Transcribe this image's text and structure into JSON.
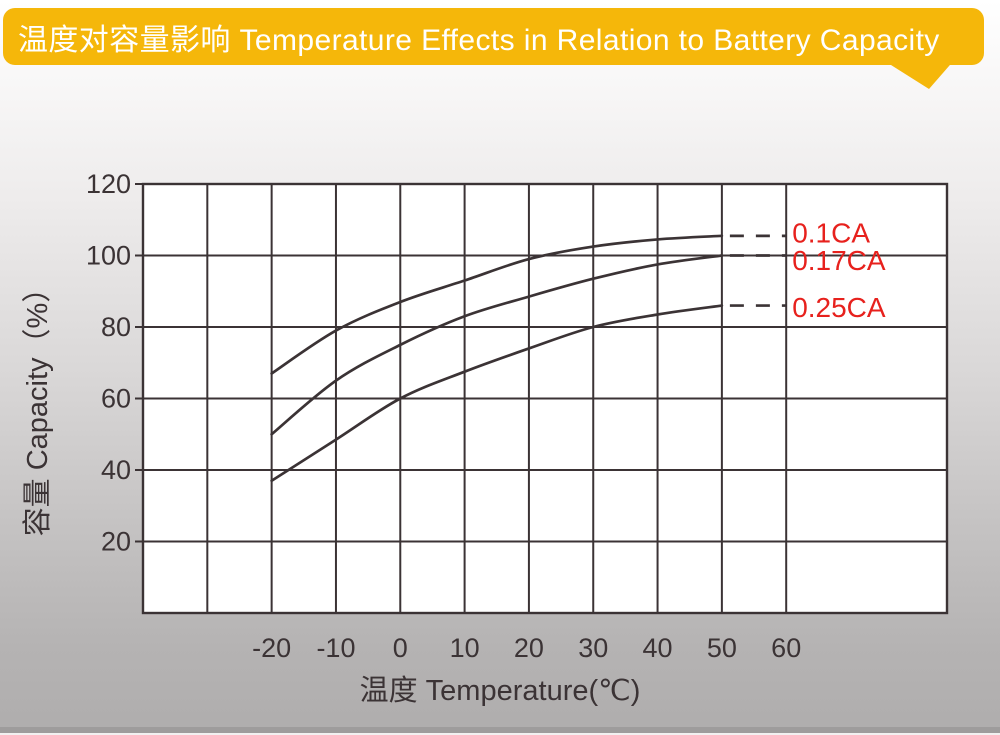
{
  "banner": {
    "title": "温度对容量影响 Temperature Effects in Relation to Battery Capacity"
  },
  "colors": {
    "banner_bg": "#F5B70A",
    "banner_text": "#FFFFFF",
    "ink": "#3B3335",
    "series_label": "#E7211D",
    "plot_bg": "#FFFFFF"
  },
  "chart_data": {
    "type": "line",
    "title": "温度对容量影响 Temperature Effects in Relation to Battery Capacity",
    "xlabel": "温度 Temperature(℃)",
    "ylabel": "容量 Capacity（%）",
    "xlim": [
      -40,
      85
    ],
    "ylim": [
      0,
      120
    ],
    "grid": true,
    "x_gridlines": [
      -40,
      -30,
      -20,
      -10,
      0,
      10,
      20,
      30,
      40,
      50,
      60
    ],
    "y_gridlines": [
      0,
      20,
      40,
      60,
      80,
      100,
      120
    ],
    "x_tick_values": [
      -20,
      -10,
      0,
      10,
      20,
      30,
      40,
      50,
      60
    ],
    "x_tick_labels": [
      "-20",
      "-10",
      "0",
      "10",
      "20",
      "30",
      "40",
      "50",
      "60"
    ],
    "y_tick_values": [
      120,
      100,
      80,
      60,
      40,
      20
    ],
    "y_tick_labels": [
      "120",
      "100",
      "80",
      "60",
      "40",
      "20"
    ],
    "legend_position": "right-inline",
    "series": [
      {
        "name": "0.1CA",
        "label": "0.1CA",
        "x": [
          -20,
          -10,
          0,
          10,
          20,
          30,
          40,
          50
        ],
        "y": [
          67,
          79,
          87,
          93,
          99,
          102.5,
          104.5,
          105.5
        ],
        "dashed_tail": {
          "x": [
            50,
            60
          ],
          "y": [
            105.5,
            105.5
          ]
        }
      },
      {
        "name": "0.17CA",
        "label": "0.17CA",
        "x": [
          -20,
          -10,
          0,
          10,
          20,
          30,
          40,
          50
        ],
        "y": [
          50,
          65,
          75,
          83,
          88.5,
          93.5,
          97.5,
          100
        ],
        "dashed_tail": {
          "x": [
            50,
            60
          ],
          "y": [
            100,
            100
          ]
        }
      },
      {
        "name": "0.25CA",
        "label": "0.25CA",
        "x": [
          -20,
          -10,
          0,
          10,
          20,
          30,
          40,
          50
        ],
        "y": [
          37,
          48.5,
          60,
          67.5,
          74,
          80,
          83.5,
          86
        ],
        "dashed_tail": {
          "x": [
            50,
            60
          ],
          "y": [
            86,
            86
          ]
        }
      }
    ]
  }
}
